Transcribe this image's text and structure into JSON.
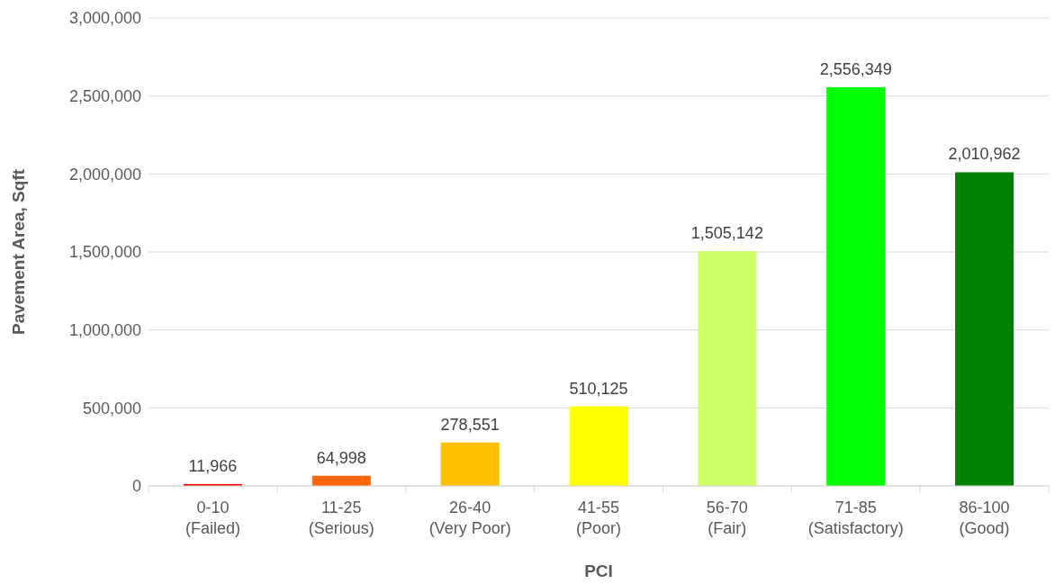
{
  "chart_data": {
    "type": "bar",
    "xlabel": "PCI",
    "ylabel": "Pavement Area, Sqft",
    "categories": [
      "0-10\n(Failed)",
      "11-25\n(Serious)",
      "26-40\n(Very Poor)",
      "41-55\n(Poor)",
      "56-70\n(Fair)",
      "71-85\n(Satisfactory)",
      "86-100\n(Good)"
    ],
    "values": [
      11966,
      64998,
      278551,
      510125,
      1505142,
      2556349,
      2010962
    ],
    "colors": [
      "#ff0000",
      "#ff6600",
      "#ffc000",
      "#ffff00",
      "#ccff66",
      "#00ff00",
      "#008000"
    ],
    "ylim": [
      0,
      3000000
    ],
    "yticks": [
      {
        "value": 0,
        "label": "0"
      },
      {
        "value": 500000,
        "label": "500,000"
      },
      {
        "value": 1000000,
        "label": "1,000,000"
      },
      {
        "value": 1500000,
        "label": "1,500,000"
      },
      {
        "value": 2000000,
        "label": "2,000,000"
      },
      {
        "value": 2500000,
        "label": "2,500,000"
      },
      {
        "value": 3000000,
        "label": "3,000,000"
      }
    ],
    "value_labels": [
      "11,966",
      "64,998",
      "278,551",
      "510,125",
      "1,505,142",
      "2,556,349",
      "2,010,962"
    ],
    "grid": "y"
  }
}
